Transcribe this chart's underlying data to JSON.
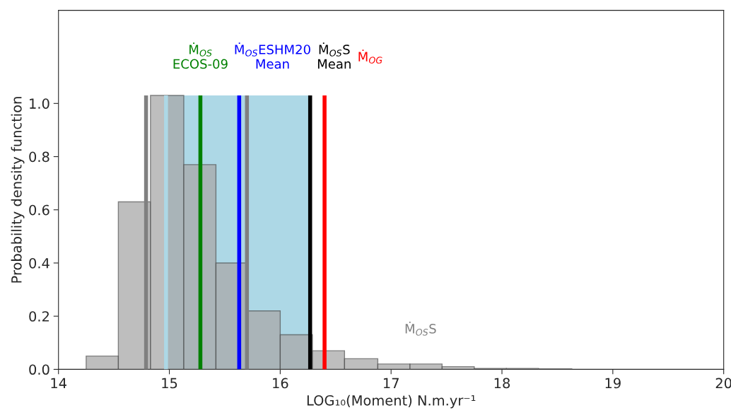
{
  "chart_data": {
    "type": "histogram",
    "xlabel": "LOG₁₀(Moment) N.m.yr⁻¹",
    "ylabel": "Probability density function",
    "bins": [
      14.25,
      14.54,
      14.83,
      15.13,
      15.42,
      15.71,
      16.0,
      16.29,
      16.58,
      16.88,
      17.17,
      17.46,
      17.75,
      18.04,
      18.33,
      18.63
    ],
    "values": [
      0.05,
      0.63,
      1.03,
      0.77,
      0.4,
      0.22,
      0.13,
      0.07,
      0.04,
      0.02,
      0.02,
      0.01,
      0.003,
      0.003,
      0.002
    ],
    "color": "#a9a9a9",
    "xlim": [
      14,
      20
    ],
    "xticks": [
      14,
      15,
      16,
      17,
      18,
      19,
      20
    ],
    "ylim": [
      0,
      1.35
    ],
    "yticks": [
      {
        "value": 0,
        "label": "0.0"
      },
      {
        "value": 0.2,
        "label": "0.2"
      },
      {
        "value": 0.4,
        "label": "0.4"
      },
      {
        "value": 0.6,
        "label": "0.6"
      },
      {
        "value": 0.8,
        "label": "0.8"
      },
      {
        "value": 1.0,
        "label": "1.0"
      }
    ],
    "bands": [
      {
        "axis": "x",
        "from": 14.97,
        "to": 16.27,
        "color": "#add8e6"
      }
    ],
    "ref_lines": [
      {
        "axis": "x",
        "value": 14.79,
        "color": "#808080"
      },
      {
        "axis": "x",
        "value": 14.97,
        "color": "#add8e6"
      },
      {
        "axis": "x",
        "value": 15.28,
        "color": "#008000",
        "label": "Ṁ$_{OS}$\nECOS-09"
      },
      {
        "axis": "x",
        "value": 15.63,
        "color": "#0000ff",
        "label": "Ṁ$_{OS}$ESHM20\nMean"
      },
      {
        "axis": "x",
        "value": 15.7,
        "color": "#808080"
      },
      {
        "axis": "x",
        "value": 16.27,
        "color": "#000000",
        "label": "Ṁ$_{OS}$S\nMean"
      },
      {
        "axis": "x",
        "value": 16.4,
        "color": "#ff0000",
        "label": "Ṁ$_{OG}$"
      }
    ],
    "annotations": [
      "Ṁ$_{OS}$S"
    ],
    "grid": false
  }
}
